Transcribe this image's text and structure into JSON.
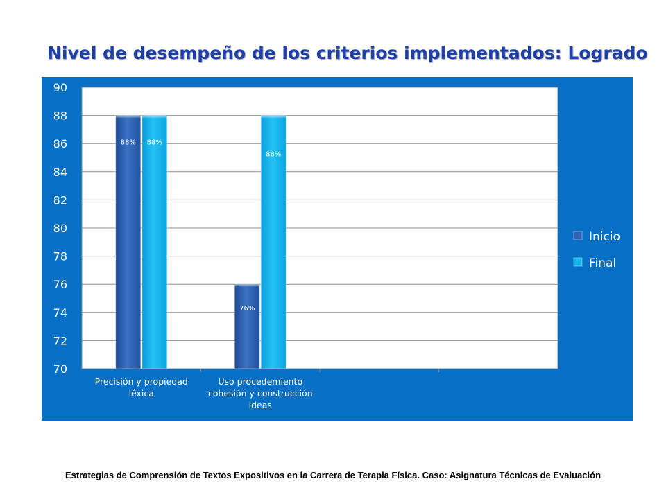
{
  "title": "Nivel de desempeño de los criterios implementados: Logrado",
  "footer": "Estrategias de Comprensión de Textos Expositivos en la Carrera de Terapia Física. Caso: Asignatura Técnicas de Evaluación",
  "colors": {
    "panel": "#0770c4",
    "inicio": "#2e62b3",
    "final": "#12b4ee",
    "title": "#1f3fa8"
  },
  "chart_data": {
    "type": "bar",
    "categories": [
      "Precisión y propiedad léxica",
      "Uso procedemiento cohesión y construcción ideas",
      "",
      ""
    ],
    "category_lines": [
      [
        "Precisión y propiedad",
        "léxica"
      ],
      [
        "Uso procedemiento",
        "cohesión y construcción",
        "ideas"
      ],
      [],
      []
    ],
    "series": [
      {
        "name": "Inicio",
        "values": [
          88,
          76,
          null,
          null
        ],
        "labels": [
          "88%",
          "76%",
          "",
          ""
        ]
      },
      {
        "name": "Final",
        "values": [
          88,
          88,
          null,
          null
        ],
        "labels": [
          "88%",
          "88%",
          "",
          ""
        ]
      }
    ],
    "ylim": [
      70,
      90
    ],
    "yticks": [
      70,
      72,
      74,
      76,
      78,
      80,
      82,
      84,
      86,
      88,
      90
    ],
    "grid": true,
    "legend": "right"
  }
}
